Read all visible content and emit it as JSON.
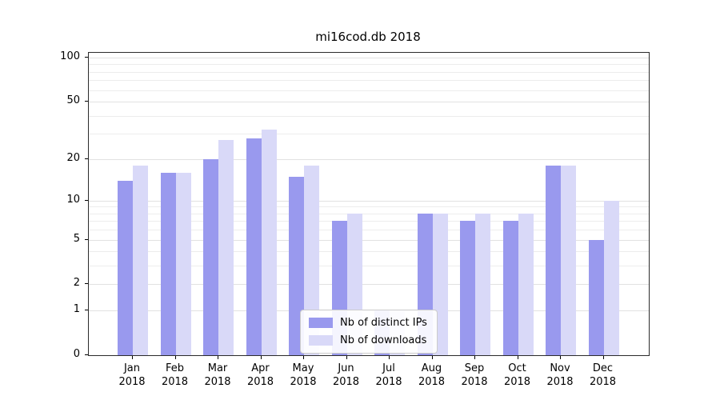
{
  "title": "mi16cod.db 2018",
  "colors": {
    "bar_ips": "#9999ee",
    "bar_downloads": "#d9d9f8",
    "grid_major": "#e2e2e2",
    "grid_minor": "#ececec",
    "axis": "#2b2b2b",
    "legend_border": "#cccccc"
  },
  "axes": {
    "yticks": [
      100,
      50,
      20,
      10,
      5,
      2,
      1,
      0
    ],
    "minor_gridlines": [
      3,
      4,
      6,
      7,
      8,
      9,
      30,
      40,
      60,
      70,
      80,
      90
    ],
    "year_label": "2018"
  },
  "legend": {
    "items": [
      {
        "label": "Nb of distinct IPs",
        "color": "#9999ee"
      },
      {
        "label": "Nb of downloads",
        "color": "#d9d9f8"
      }
    ]
  },
  "chart_data": {
    "type": "bar",
    "title": "mi16cod.db 2018",
    "categories": [
      "Jan 2018",
      "Feb 2018",
      "Mar 2018",
      "Apr 2018",
      "May 2018",
      "Jun 2018",
      "Jul 2018",
      "Aug 2018",
      "Sep 2018",
      "Oct 2018",
      "Nov 2018",
      "Dec 2018"
    ],
    "series": [
      {
        "name": "Nb of distinct IPs",
        "color": "#9999ee",
        "values": [
          14,
          16,
          20,
          28,
          15,
          7,
          1,
          8,
          7,
          7,
          18,
          5
        ]
      },
      {
        "name": "Nb of downloads",
        "color": "#d9d9f8",
        "values": [
          18,
          16,
          27,
          32,
          18,
          8,
          1,
          8,
          8,
          8,
          18,
          10
        ]
      }
    ],
    "yscale": "log1p",
    "yticks": [
      0,
      1,
      2,
      5,
      10,
      20,
      50,
      100
    ],
    "ylim": [
      0,
      100
    ],
    "grid": true,
    "legend_position": "lower center"
  }
}
